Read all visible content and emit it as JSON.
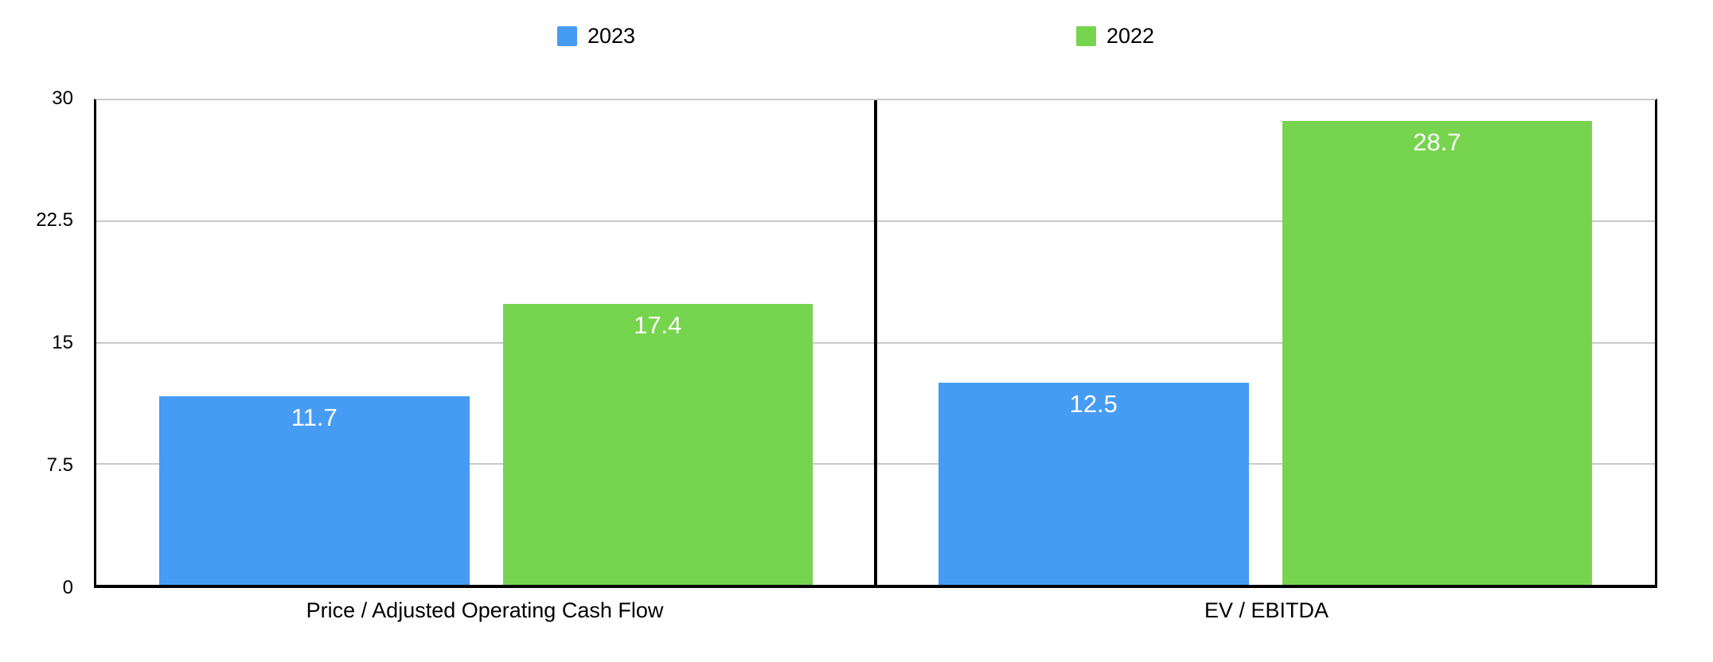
{
  "chart_data": {
    "type": "bar",
    "categories": [
      "Price / Adjusted Operating Cash Flow",
      "EV / EBITDA"
    ],
    "series": [
      {
        "name": "2023",
        "color": "#469cf3",
        "values": [
          11.7,
          12.5
        ]
      },
      {
        "name": "2022",
        "color": "#77d44e",
        "values": [
          17.4,
          28.7
        ]
      }
    ],
    "ylim": [
      0,
      30
    ],
    "ytick_labels": [
      "0",
      "7.5",
      "15",
      "22.5",
      "30"
    ],
    "grid": true,
    "legend_position": "top",
    "value_labels": true,
    "value_label_color": "#ffffff",
    "gridline_color": "#c9c9c9",
    "axis_color": "#000000"
  }
}
